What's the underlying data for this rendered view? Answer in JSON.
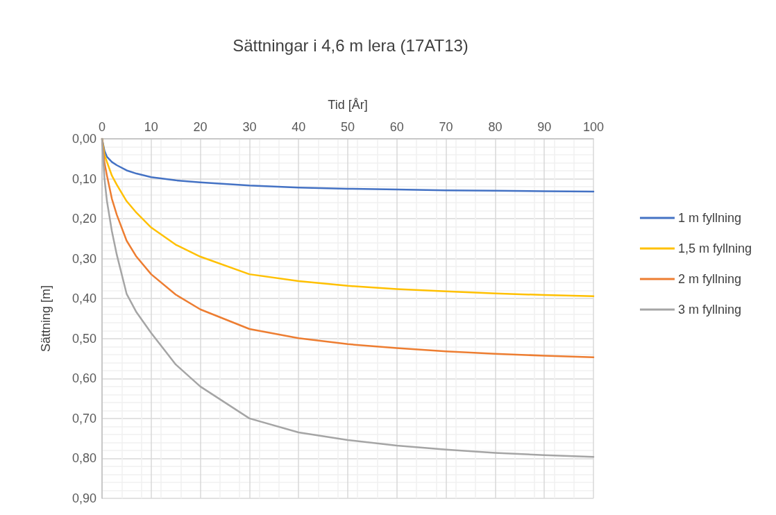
{
  "chart_data": {
    "type": "line",
    "title": "Sättningar i 4,6 m lera (17AT13)",
    "xlabel": "Tid [År]",
    "ylabel": "Sättning [m]",
    "x": [
      0,
      0.5,
      1,
      2,
      3,
      5,
      7,
      10,
      15,
      20,
      30,
      40,
      50,
      60,
      70,
      80,
      90,
      100
    ],
    "series": [
      {
        "name": "1 m fyllning",
        "color": "#4472c4",
        "values": [
          0,
          0.03,
          0.045,
          0.058,
          0.066,
          0.079,
          0.087,
          0.096,
          0.104,
          0.109,
          0.117,
          0.122,
          0.125,
          0.127,
          0.129,
          0.13,
          0.131,
          0.132
        ]
      },
      {
        "name": "1,5 m fyllning",
        "color": "#ffc000",
        "values": [
          0,
          0.04,
          0.058,
          0.092,
          0.115,
          0.156,
          0.185,
          0.222,
          0.265,
          0.295,
          0.339,
          0.356,
          0.368,
          0.376,
          0.382,
          0.387,
          0.391,
          0.394
        ]
      },
      {
        "name": "2 m fyllning",
        "color": "#ed7d31",
        "values": [
          0,
          0.06,
          0.092,
          0.15,
          0.19,
          0.255,
          0.295,
          0.339,
          0.39,
          0.427,
          0.476,
          0.499,
          0.514,
          0.524,
          0.532,
          0.538,
          0.543,
          0.547
        ]
      },
      {
        "name": "3 m fyllning",
        "color": "#a5a5a5",
        "values": [
          0,
          0.1,
          0.156,
          0.231,
          0.29,
          0.388,
          0.434,
          0.486,
          0.565,
          0.62,
          0.7,
          0.735,
          0.754,
          0.768,
          0.778,
          0.786,
          0.792,
          0.796
        ]
      }
    ],
    "xlim": [
      0,
      100
    ],
    "xticks": [
      0,
      10,
      20,
      30,
      40,
      50,
      60,
      70,
      80,
      90,
      100
    ],
    "ylim": [
      0.9,
      0
    ],
    "yticks": [
      {
        "value": 0,
        "label": "0,00"
      },
      {
        "value": 0.1,
        "label": "0,10"
      },
      {
        "value": 0.2,
        "label": "0,20"
      },
      {
        "value": 0.3,
        "label": "0,30"
      },
      {
        "value": 0.4,
        "label": "0,40"
      },
      {
        "value": 0.5,
        "label": "0,50"
      },
      {
        "value": 0.6,
        "label": "0,60"
      },
      {
        "value": 0.7,
        "label": "0,70"
      },
      {
        "value": 0.8,
        "label": "0,80"
      },
      {
        "value": 0.9,
        "label": "0,90"
      }
    ],
    "grid": true,
    "legend": "right",
    "marker": "none",
    "line_style": "solid"
  }
}
